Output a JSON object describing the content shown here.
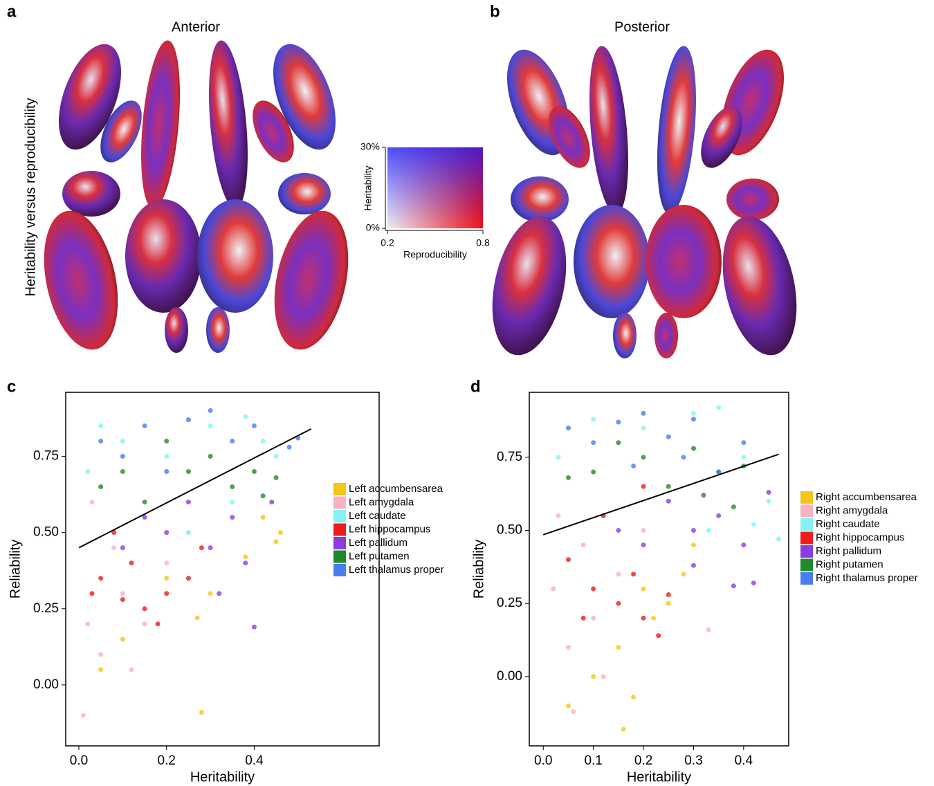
{
  "figure": {
    "a": {
      "label": "a",
      "title": "Anterior",
      "side_label": "Heritability versus reproducibility"
    },
    "b": {
      "label": "b",
      "title": "Posterior"
    },
    "colorbar": {
      "xlabel": "Reproducibility",
      "ylabel": "Heritability",
      "xlim": [
        0.2,
        0.8
      ],
      "xticks": [
        0.2,
        0.8
      ],
      "ylim": [
        0,
        30
      ],
      "yticks": [
        {
          "value": 0,
          "label": "0%"
        },
        {
          "value": 30,
          "label": "30%"
        }
      ]
    }
  },
  "chart_data": [
    {
      "type": "scatter",
      "panel_label": "c",
      "xlabel": "Heritability",
      "ylabel": "Reliability",
      "xlim": [
        -0.03,
        0.685
      ],
      "ylim": [
        -0.2,
        0.96
      ],
      "xticks": [
        {
          "value": 0,
          "label": "0.0"
        },
        0.2,
        0.4
      ],
      "yticks": [
        {
          "value": 0,
          "label": "0.00"
        },
        0.25,
        {
          "value": 0.5,
          "label": "0.50"
        },
        0.75
      ],
      "fit_line": {
        "x": [
          0,
          0.53
        ],
        "y": [
          0.45,
          0.84
        ],
        "color": "#000000"
      },
      "series": [
        {
          "name": "Left accumbensarea",
          "color": "#f5c518",
          "x": [
            0.45,
            0.42,
            0.38,
            0.3,
            0.27,
            0.2,
            0.1,
            0.05,
            0.28,
            0.46
          ],
          "values": [
            0.47,
            0.55,
            0.42,
            0.3,
            0.22,
            0.35,
            0.15,
            0.05,
            -0.09,
            0.5
          ]
        },
        {
          "name": "Left amygdala",
          "color": "#f7b3c0",
          "x": [
            0.02,
            0.05,
            0.1,
            0.15,
            0.08,
            0.03,
            0.2,
            0.12,
            0.25,
            0.01
          ],
          "values": [
            0.2,
            0.1,
            0.3,
            0.2,
            0.45,
            0.6,
            0.4,
            0.05,
            0.5,
            -0.1
          ]
        },
        {
          "name": "Left caudate",
          "color": "#86f2f2",
          "x": [
            0.05,
            0.1,
            0.2,
            0.3,
            0.38,
            0.42,
            0.45,
            0.02,
            0.25,
            0.35
          ],
          "values": [
            0.85,
            0.8,
            0.75,
            0.85,
            0.88,
            0.8,
            0.75,
            0.7,
            0.5,
            0.6
          ]
        },
        {
          "name": "Left hippocampus",
          "color": "#ee1c1c",
          "x": [
            0.05,
            0.1,
            0.15,
            0.2,
            0.12,
            0.08,
            0.18,
            0.25,
            0.03,
            0.28
          ],
          "values": [
            0.35,
            0.28,
            0.25,
            0.3,
            0.4,
            0.5,
            0.2,
            0.35,
            0.3,
            0.45
          ]
        },
        {
          "name": "Left pallidum",
          "color": "#8a3de0",
          "x": [
            0.2,
            0.3,
            0.35,
            0.4,
            0.38,
            0.15,
            0.25,
            0.32,
            0.1,
            0.44
          ],
          "values": [
            0.5,
            0.45,
            0.55,
            0.19,
            0.4,
            0.55,
            0.6,
            0.3,
            0.45,
            0.6
          ]
        },
        {
          "name": "Left putamen",
          "color": "#1f8a2a",
          "x": [
            0.1,
            0.2,
            0.3,
            0.35,
            0.4,
            0.45,
            0.15,
            0.25,
            0.05,
            0.42
          ],
          "values": [
            0.7,
            0.8,
            0.75,
            0.65,
            0.7,
            0.68,
            0.6,
            0.7,
            0.65,
            0.62
          ]
        },
        {
          "name": "Left thalamus proper",
          "color": "#4a7df0",
          "x": [
            0.05,
            0.15,
            0.25,
            0.3,
            0.35,
            0.5,
            0.48,
            0.2,
            0.1,
            0.4
          ],
          "values": [
            0.8,
            0.85,
            0.87,
            0.9,
            0.8,
            0.81,
            0.78,
            0.7,
            0.75,
            0.85
          ]
        }
      ]
    },
    {
      "type": "scatter",
      "panel_label": "d",
      "xlabel": "Heritability",
      "ylabel": "Reliability",
      "xlim": [
        -0.028,
        0.49
      ],
      "ylim": [
        -0.237,
        0.972
      ],
      "xticks": [
        {
          "value": 0,
          "label": "0.0"
        },
        0.1,
        0.2,
        0.3,
        0.4
      ],
      "yticks": [
        {
          "value": 0,
          "label": "0.00"
        },
        0.25,
        {
          "value": 0.5,
          "label": "0.50"
        },
        0.75
      ],
      "fit_line": {
        "x": [
          0,
          0.47
        ],
        "y": [
          0.485,
          0.76
        ],
        "color": "#000000"
      },
      "series": [
        {
          "name": "Right accumbensarea",
          "color": "#f5c518",
          "x": [
            0.2,
            0.25,
            0.15,
            0.1,
            0.16,
            0.05,
            0.28,
            0.22,
            0.3,
            0.18
          ],
          "values": [
            0.3,
            0.25,
            0.1,
            0.0,
            -0.18,
            -0.1,
            0.35,
            0.2,
            0.45,
            -0.07
          ]
        },
        {
          "name": "Right amygdala",
          "color": "#f7b3c0",
          "x": [
            0.02,
            0.05,
            0.1,
            0.08,
            0.33,
            0.15,
            0.03,
            0.12,
            0.2,
            0.06
          ],
          "values": [
            0.3,
            0.1,
            0.2,
            0.45,
            0.16,
            0.35,
            0.55,
            0.0,
            0.5,
            -0.12
          ]
        },
        {
          "name": "Right caudate",
          "color": "#86f2f2",
          "x": [
            0.3,
            0.35,
            0.4,
            0.45,
            0.47,
            0.42,
            0.1,
            0.2,
            0.33,
            0.03
          ],
          "values": [
            0.9,
            0.92,
            0.75,
            0.6,
            0.47,
            0.52,
            0.88,
            0.85,
            0.5,
            0.75
          ]
        },
        {
          "name": "Right hippocampus",
          "color": "#ee1c1c",
          "x": [
            0.1,
            0.15,
            0.2,
            0.23,
            0.05,
            0.12,
            0.18,
            0.25,
            0.08,
            0.2
          ],
          "values": [
            0.3,
            0.25,
            0.2,
            0.14,
            0.4,
            0.55,
            0.35,
            0.28,
            0.2,
            0.65
          ]
        },
        {
          "name": "Right pallidum",
          "color": "#8a3de0",
          "x": [
            0.25,
            0.3,
            0.35,
            0.4,
            0.42,
            0.38,
            0.45,
            0.2,
            0.3,
            0.15
          ],
          "values": [
            0.6,
            0.5,
            0.55,
            0.45,
            0.32,
            0.31,
            0.63,
            0.45,
            0.38,
            0.5
          ]
        },
        {
          "name": "Right putamen",
          "color": "#1f8a2a",
          "x": [
            0.1,
            0.2,
            0.3,
            0.35,
            0.4,
            0.38,
            0.25,
            0.15,
            0.32,
            0.05
          ],
          "values": [
            0.7,
            0.75,
            0.78,
            0.7,
            0.72,
            0.58,
            0.65,
            0.8,
            0.62,
            0.68
          ]
        },
        {
          "name": "Right thalamus proper",
          "color": "#4a7df0",
          "x": [
            0.05,
            0.1,
            0.15,
            0.2,
            0.25,
            0.3,
            0.35,
            0.4,
            0.28,
            0.18
          ],
          "values": [
            0.85,
            0.8,
            0.87,
            0.9,
            0.82,
            0.88,
            0.7,
            0.8,
            0.75,
            0.72
          ]
        }
      ]
    }
  ]
}
